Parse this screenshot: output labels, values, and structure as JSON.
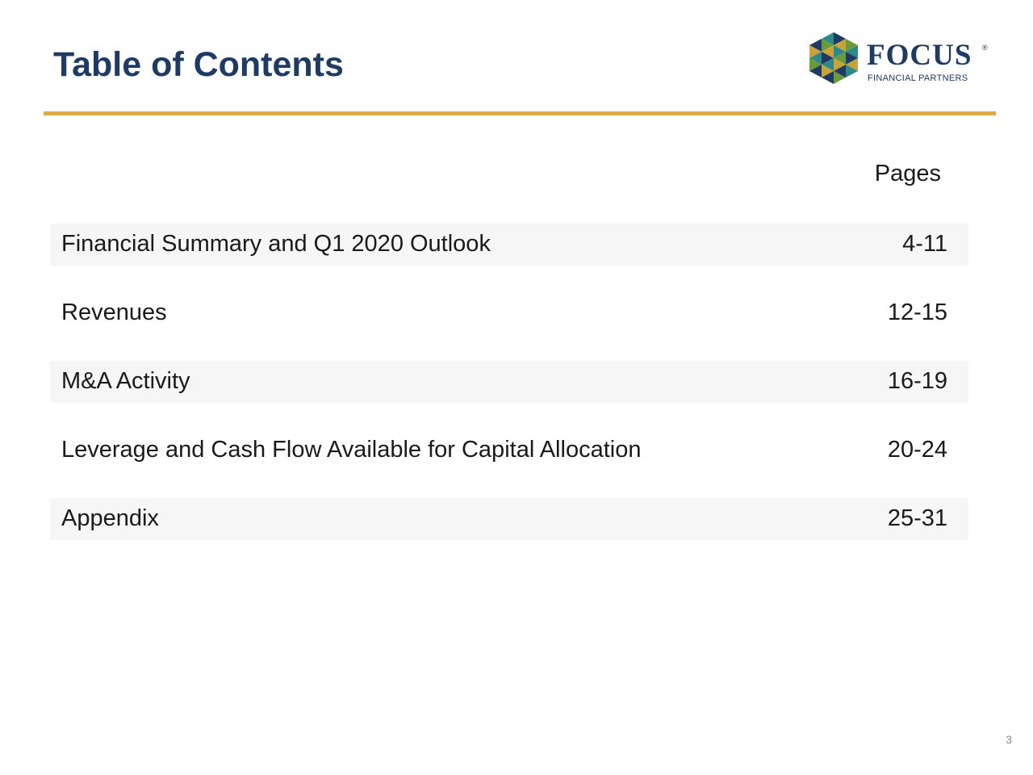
{
  "header": {
    "title": "Table of Contents"
  },
  "logo": {
    "wordmark": "FOCUS",
    "registered": "®",
    "subtitle": "FINANCIAL PARTNERS",
    "colors": {
      "navy": "#1f3a63",
      "teal": "#2e8a8a",
      "green": "#6b9a3a",
      "gold": "#c9a23a"
    }
  },
  "divider": {
    "color": "#dba84a"
  },
  "toc": {
    "column_header": "Pages",
    "rows": [
      {
        "label": "Financial Summary and Q1 2020 Outlook",
        "pages": "4-11",
        "shaded": true
      },
      {
        "label": "Revenues",
        "pages": "12-15",
        "shaded": false
      },
      {
        "label": "M&A Activity",
        "pages": "16-19",
        "shaded": true
      },
      {
        "label": "Leverage and Cash Flow Available for Capital Allocation",
        "pages": "20-24",
        "shaded": false
      },
      {
        "label": "Appendix",
        "pages": "25-31",
        "shaded": true
      }
    ]
  },
  "footer": {
    "page_number": "3"
  }
}
